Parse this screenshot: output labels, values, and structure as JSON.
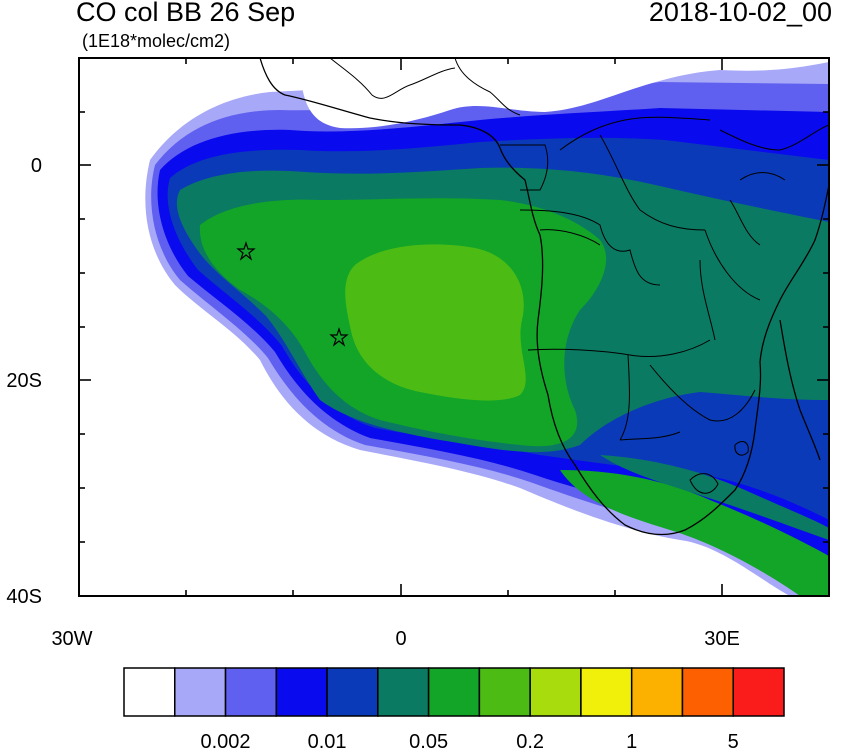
{
  "header": {
    "title": "CO col BB 26 Sep",
    "units": "(1E18*molec/cm2)",
    "timestamp": "2018-10-02_00"
  },
  "map": {
    "lon_range": [
      -30,
      40
    ],
    "lat_range": [
      -40,
      10
    ],
    "x_tick_labels": [
      "30W",
      "0",
      "30E"
    ],
    "y_tick_labels": [
      "0",
      "20S",
      "40S"
    ],
    "markers": [
      {
        "name": "star-marker",
        "lon": -14.5,
        "lat": -8
      },
      {
        "name": "star-marker",
        "lon": -5.8,
        "lat": -16
      }
    ]
  },
  "colorbar": {
    "colors": [
      "#ffffff",
      "#a8a8f8",
      "#6060f0",
      "#0a0aee",
      "#0a3ab8",
      "#0b7a62",
      "#12a528",
      "#4cbc14",
      "#a8dc0c",
      "#f0f00a",
      "#fcb000",
      "#fc6000",
      "#fa1b1b"
    ],
    "labels": [
      "0.002",
      "0.01",
      "0.05",
      "0.2",
      "1",
      "5"
    ]
  }
}
